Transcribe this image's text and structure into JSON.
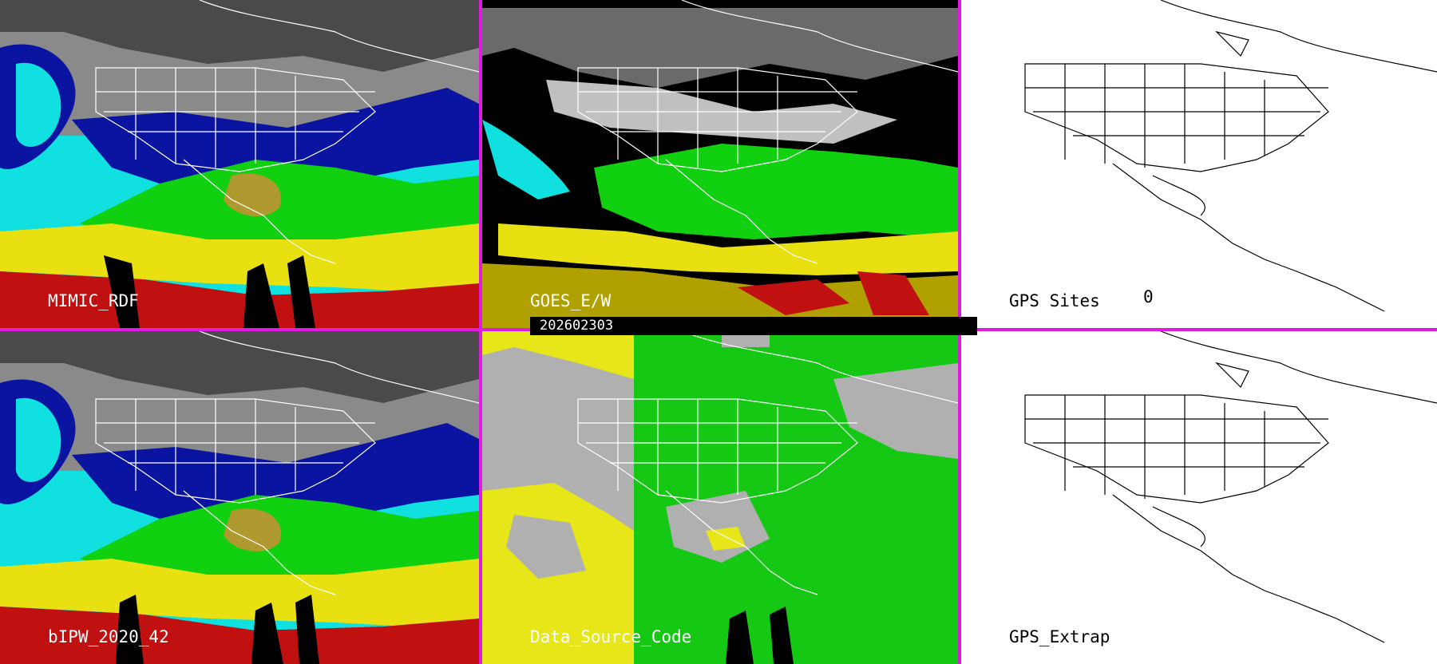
{
  "panels": [
    {
      "id": "mimic",
      "label": "MIMIC_RDF",
      "palette": "pw"
    },
    {
      "id": "goes",
      "label": "GOES_E/W",
      "palette": "pw-dark"
    },
    {
      "id": "gps-sites",
      "label": "GPS Sites",
      "count": "0",
      "palette": "blank"
    },
    {
      "id": "blpw",
      "label": "bIPW_2020_42",
      "palette": "pw"
    },
    {
      "id": "source",
      "label": "Data_Source_Code",
      "palette": "source"
    },
    {
      "id": "gps-extrap",
      "label": "GPS_Extrap",
      "palette": "blank"
    }
  ],
  "timestamp": "202602303",
  "colors": {
    "separator": "#e01ae0",
    "pw_dry_gray": "#8a8a8a",
    "pw_blue": "#0a14a0",
    "pw_cyan": "#10e0e0",
    "pw_green": "#10d010",
    "pw_yellow": "#e8e010",
    "pw_red": "#c01010",
    "source_gray": "#b0b0b0",
    "source_yellow": "#e6e619",
    "source_green": "#14c814"
  }
}
